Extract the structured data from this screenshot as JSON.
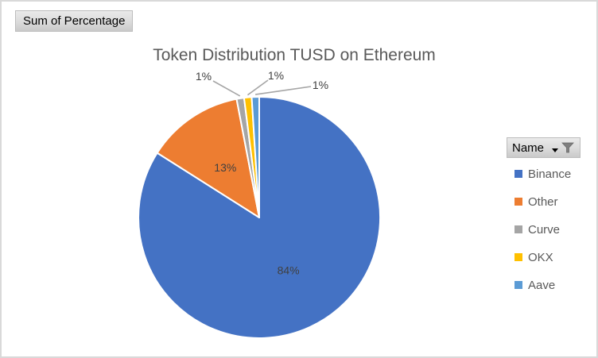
{
  "chart_data": {
    "type": "pie",
    "title": "Token Distribution TUSD on Ethereum",
    "series_name": "Sum of Percentage",
    "categories": [
      "Binance",
      "Other",
      "Curve",
      "OKX",
      "Aave"
    ],
    "values": [
      84,
      13,
      1,
      1,
      1
    ],
    "data_labels": [
      "84%",
      "13%",
      "1%",
      "1%",
      "1%"
    ],
    "colors": [
      "#4472C4",
      "#ED7D31",
      "#A5A5A5",
      "#FFC000",
      "#5B9BD5"
    ],
    "legend_position": "right",
    "start_angle_deg": 0,
    "direction": "clockwise",
    "slice_border_color": "#FFFFFF"
  },
  "pivot_buttons": {
    "value_field": "Sum of Percentage",
    "legend_field": "Name"
  },
  "styles": {
    "title_color": "#595959",
    "data_label_color": "#404040",
    "leader_line_color": "#A6A6A6",
    "legend_text_color": "#595959",
    "frame_border_color": "#D9D9D9",
    "button_text_color": "#000000"
  }
}
